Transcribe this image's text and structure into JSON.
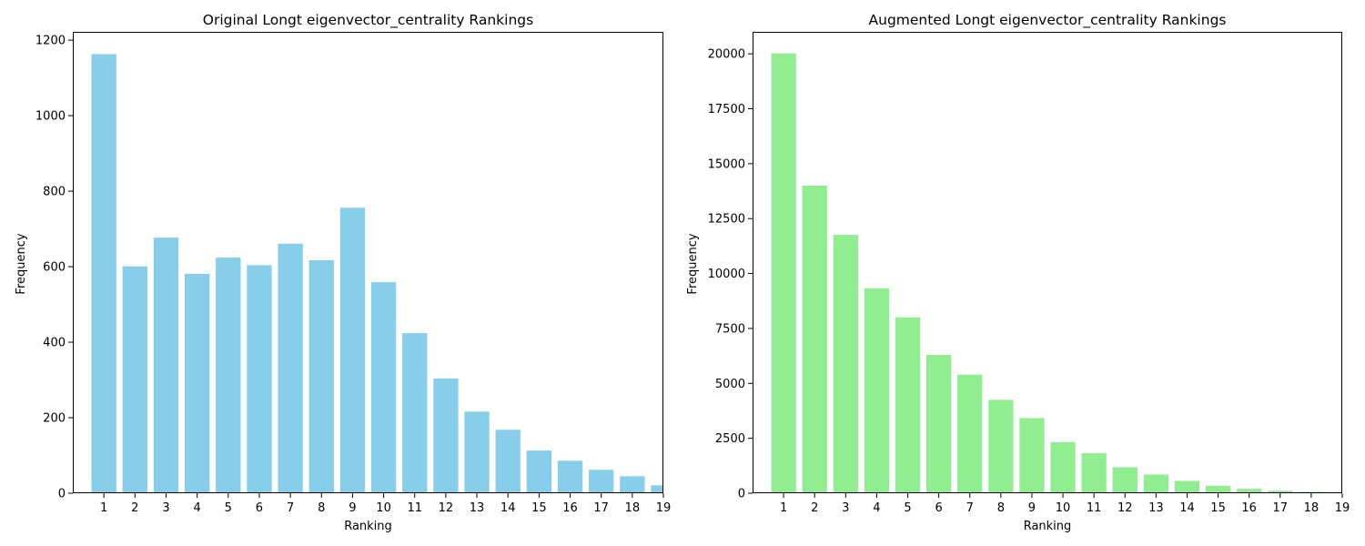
{
  "chart_data": [
    {
      "type": "bar",
      "title": "Original Longt eigenvector_centrality Rankings",
      "xlabel": "Ranking",
      "ylabel": "Frequency",
      "color": "#87CEEB",
      "categories": [
        "1",
        "2",
        "3",
        "4",
        "5",
        "6",
        "7",
        "8",
        "9",
        "10",
        "11",
        "12",
        "13",
        "14",
        "15",
        "16",
        "17",
        "18",
        "19"
      ],
      "values": [
        1163,
        601,
        677,
        581,
        624,
        604,
        661,
        617,
        756,
        559,
        424,
        304,
        216,
        168,
        113,
        86,
        62,
        45,
        21
      ],
      "xlim": [
        0,
        19
      ],
      "ylim": [
        0,
        1222
      ],
      "yticks": [
        0,
        200,
        400,
        600,
        800,
        1000,
        1200
      ],
      "legend": "none",
      "grid": false
    },
    {
      "type": "bar",
      "title": "Augmented Longt eigenvector_centrality Rankings",
      "xlabel": "Ranking",
      "ylabel": "Frequency",
      "color": "#90EE90",
      "categories": [
        "1",
        "2",
        "3",
        "4",
        "5",
        "6",
        "7",
        "8",
        "9",
        "10",
        "11",
        "12",
        "13",
        "14",
        "15",
        "16",
        "17",
        "18",
        "19"
      ],
      "values": [
        20020,
        14000,
        11760,
        9330,
        8000,
        6300,
        5400,
        4250,
        3420,
        2330,
        1820,
        1180,
        850,
        560,
        340,
        200,
        110,
        60,
        20
      ],
      "xlim": [
        0,
        19
      ],
      "ylim": [
        0,
        21000
      ],
      "yticks": [
        0,
        2500,
        5000,
        7500,
        10000,
        12500,
        15000,
        17500,
        20000
      ],
      "legend": "none",
      "grid": false
    }
  ]
}
